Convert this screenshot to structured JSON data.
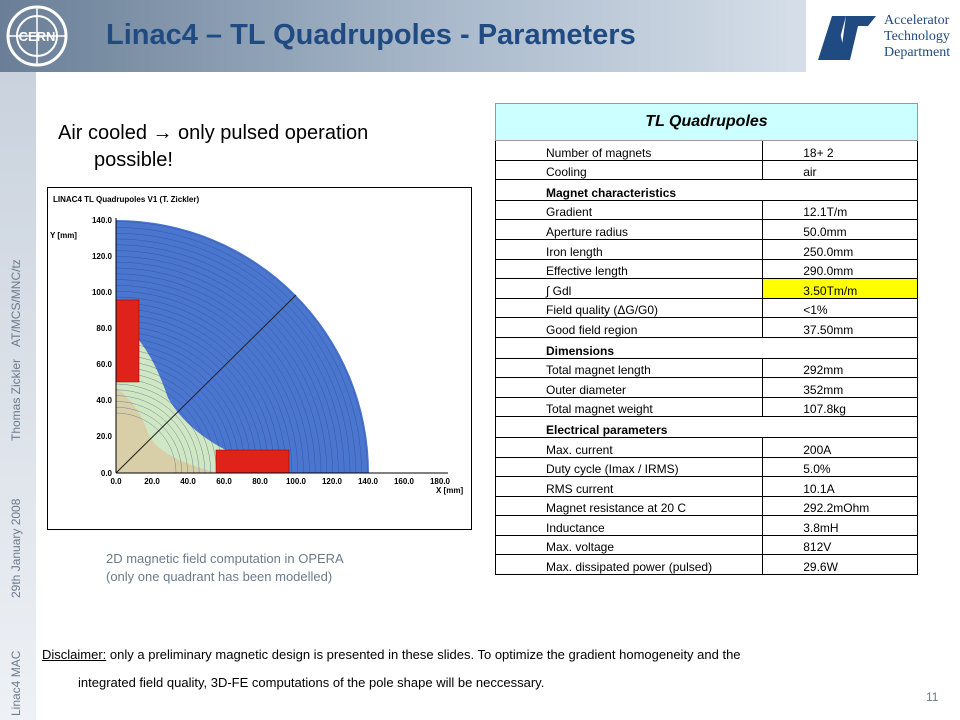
{
  "header": {
    "title": "Linac4 – TL Quadrupoles - Parameters",
    "cern_logo_text": "CERN",
    "department_lines": [
      "Accelerator",
      "Technology",
      "Department"
    ],
    "accent_color": "#1f4a82"
  },
  "sidebar": {
    "items": [
      "Linac4 MAC",
      "29th January 2008",
      "Thomas Zickler",
      "AT/MCS/MNC/tz"
    ]
  },
  "intro": {
    "line1": "Air cooled  only pulsed operation",
    "arrow": "→",
    "line2": "possible!"
  },
  "plot": {
    "title": "LINAC4 TL Quadrupoles V1 (T. Zickler)",
    "y_axis_label": "Y [mm]",
    "x_axis_label": "X [mm]",
    "y_ticks": [
      "140.0",
      "120.0",
      "100.0",
      "80.0",
      "60.0",
      "40.0",
      "20.0",
      "0.0"
    ],
    "x_ticks": [
      "0.0",
      "20.0",
      "40.0",
      "60.0",
      "80.0",
      "100.0",
      "120.0",
      "140.0",
      "160.0",
      "180.0"
    ]
  },
  "caption": {
    "line1": "2D magnetic field computation in OPERA",
    "line2": "(only one quadrant has been modelled)"
  },
  "table": {
    "title": "TL Quadrupoles",
    "highlight_color": "#ffff00",
    "rows": [
      {
        "label": "Number of magnets",
        "value": "18+ 2"
      },
      {
        "label": "Cooling",
        "value": "air"
      },
      {
        "section": "Magnet characteristics"
      },
      {
        "label": "Gradient",
        "value": "12.1T/m"
      },
      {
        "label": "Aperture radius",
        "value": "50.0mm"
      },
      {
        "label": "Iron length",
        "value": "250.0mm"
      },
      {
        "label": "Effective length",
        "value": "290.0mm"
      },
      {
        "label": "∫ Gdl",
        "value": "3.50Tm/m"
      },
      {
        "label": "Field quality (ΔG/G0)",
        "value": "<1%"
      },
      {
        "label": "Good field region",
        "value": "37.50mm"
      },
      {
        "section": "Dimensions"
      },
      {
        "label": "Total magnet length",
        "value": "292mm"
      },
      {
        "label": "Outer diameter",
        "value": "352mm"
      },
      {
        "label": "Total magnet weight",
        "value": "107.8kg"
      },
      {
        "section": "Electrical parameters"
      },
      {
        "label": "Max. current",
        "value": "200A"
      },
      {
        "label": "Duty cycle (Imax / IRMS)",
        "value": "5.0%"
      },
      {
        "label": "RMS current",
        "value": "10.1A"
      },
      {
        "label": "Magnet resistance at 20 C",
        "value": "292.2mOhm"
      },
      {
        "label": "Inductance",
        "value": "3.8mH"
      },
      {
        "label": "Max. voltage",
        "value": "812V"
      },
      {
        "label": "Max. dissipated power (pulsed)",
        "value": "29.6W"
      }
    ]
  },
  "disclaimer": {
    "label": "Disclaimer:",
    "text1": " only a preliminary magnetic design is presented in these slides. To optimize the gradient homogeneity and the",
    "text2": "integrated field quality, 3D-FE computations of the pole shape will be neccessary."
  },
  "page_number": "11"
}
